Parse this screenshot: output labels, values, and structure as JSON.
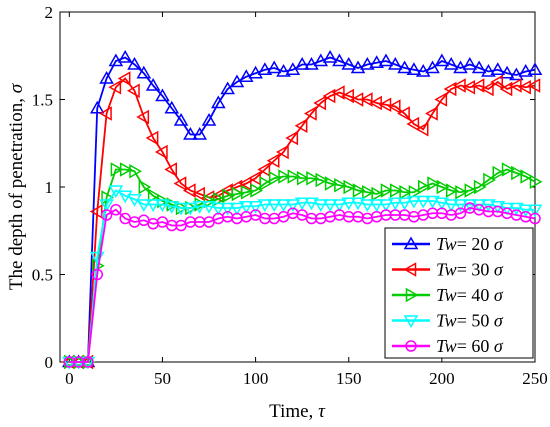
{
  "chart_data": {
    "type": "line",
    "title": "",
    "xlabel": "Time, ",
    "xlabel_symbol": "τ",
    "ylabel": "The depth of penetration, ",
    "ylabel_symbol": "σ",
    "xlim": [
      -5,
      250
    ],
    "ylim": [
      0,
      2
    ],
    "xticks": [
      0,
      50,
      100,
      150,
      200,
      250
    ],
    "yticks": [
      0,
      0.5,
      1,
      1.5,
      2
    ],
    "ytick_labels": [
      "0",
      "0.5",
      "1",
      "1.5",
      "2"
    ],
    "grid": false,
    "legend_position": "bottom-right",
    "legend_var": "Tw",
    "legend_unit": "σ",
    "x": [
      0,
      5,
      10,
      15,
      20,
      25,
      30,
      35,
      40,
      45,
      50,
      55,
      60,
      65,
      70,
      75,
      80,
      85,
      90,
      95,
      100,
      105,
      110,
      115,
      120,
      125,
      130,
      135,
      140,
      145,
      150,
      155,
      160,
      165,
      170,
      175,
      180,
      185,
      190,
      195,
      200,
      205,
      210,
      215,
      220,
      225,
      230,
      235,
      240,
      245,
      250
    ],
    "series": [
      {
        "name": "= 20",
        "color": "#0000ff",
        "marker": "triangle-up",
        "values": [
          0,
          0,
          0,
          1.45,
          1.62,
          1.72,
          1.74,
          1.7,
          1.65,
          1.58,
          1.52,
          1.45,
          1.38,
          1.3,
          1.3,
          1.38,
          1.48,
          1.56,
          1.6,
          1.63,
          1.65,
          1.67,
          1.68,
          1.66,
          1.67,
          1.7,
          1.7,
          1.72,
          1.74,
          1.72,
          1.7,
          1.68,
          1.7,
          1.71,
          1.72,
          1.7,
          1.68,
          1.67,
          1.66,
          1.68,
          1.72,
          1.7,
          1.68,
          1.7,
          1.68,
          1.66,
          1.67,
          1.65,
          1.64,
          1.66,
          1.67
        ]
      },
      {
        "name": "= 30",
        "color": "#ff0000",
        "marker": "triangle-left",
        "values": [
          0,
          0,
          0,
          0.86,
          1.42,
          1.57,
          1.62,
          1.55,
          1.4,
          1.28,
          1.2,
          1.1,
          1.02,
          0.98,
          0.96,
          0.94,
          0.95,
          0.98,
          1.0,
          1.02,
          1.05,
          1.1,
          1.15,
          1.2,
          1.28,
          1.35,
          1.42,
          1.48,
          1.52,
          1.54,
          1.52,
          1.5,
          1.5,
          1.48,
          1.47,
          1.46,
          1.42,
          1.36,
          1.33,
          1.42,
          1.5,
          1.56,
          1.58,
          1.57,
          1.58,
          1.56,
          1.6,
          1.56,
          1.58,
          1.57,
          1.58
        ]
      },
      {
        "name": "= 40",
        "color": "#00cc00",
        "marker": "triangle-right",
        "values": [
          0,
          0,
          0,
          0.55,
          0.94,
          1.1,
          1.1,
          1.09,
          1.0,
          0.95,
          0.92,
          0.9,
          0.88,
          0.88,
          0.9,
          0.92,
          0.93,
          0.95,
          0.96,
          0.97,
          0.98,
          1.02,
          1.05,
          1.06,
          1.06,
          1.05,
          1.05,
          1.04,
          1.02,
          1.01,
          1.0,
          0.98,
          0.97,
          0.96,
          0.98,
          0.98,
          0.97,
          0.97,
          1.0,
          1.02,
          1.0,
          0.98,
          0.97,
          0.98,
          1.0,
          1.04,
          1.08,
          1.1,
          1.08,
          1.06,
          1.03
        ]
      },
      {
        "name": "= 50",
        "color": "#00ffff",
        "marker": "triangle-down",
        "values": [
          0,
          0,
          0,
          0.6,
          0.9,
          0.98,
          0.95,
          0.93,
          0.9,
          0.9,
          0.9,
          0.89,
          0.88,
          0.88,
          0.89,
          0.89,
          0.88,
          0.88,
          0.88,
          0.89,
          0.89,
          0.9,
          0.9,
          0.9,
          0.9,
          0.91,
          0.91,
          0.9,
          0.9,
          0.9,
          0.91,
          0.91,
          0.9,
          0.9,
          0.9,
          0.91,
          0.91,
          0.92,
          0.92,
          0.92,
          0.91,
          0.9,
          0.9,
          0.9,
          0.9,
          0.9,
          0.89,
          0.88,
          0.88,
          0.87,
          0.87
        ]
      },
      {
        "name": "= 60",
        "color": "#ff00ff",
        "marker": "circle",
        "values": [
          0,
          0,
          0,
          0.5,
          0.84,
          0.87,
          0.82,
          0.8,
          0.81,
          0.79,
          0.8,
          0.78,
          0.78,
          0.8,
          0.8,
          0.8,
          0.82,
          0.83,
          0.82,
          0.83,
          0.84,
          0.82,
          0.82,
          0.83,
          0.85,
          0.84,
          0.82,
          0.82,
          0.83,
          0.84,
          0.83,
          0.83,
          0.82,
          0.83,
          0.84,
          0.84,
          0.84,
          0.83,
          0.84,
          0.85,
          0.85,
          0.84,
          0.85,
          0.88,
          0.87,
          0.86,
          0.86,
          0.85,
          0.84,
          0.83,
          0.82
        ]
      }
    ]
  }
}
